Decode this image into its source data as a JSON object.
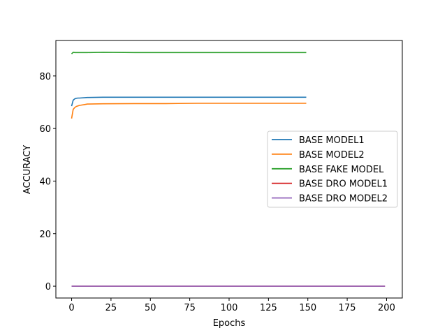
{
  "chart_data": {
    "type": "line",
    "xlabel": "Epochs",
    "ylabel": "ACCURACY",
    "xlim": [
      -10,
      210
    ],
    "ylim": [
      -4.5,
      93.5
    ],
    "xticks": [
      0,
      25,
      50,
      75,
      100,
      125,
      150,
      175,
      200
    ],
    "yticks": [
      0,
      20,
      40,
      60,
      80
    ],
    "grid": false,
    "legend_position": "center-right",
    "series": [
      {
        "name": "BASE MODEL1",
        "color": "#1f77b4",
        "x": [
          0,
          1,
          2,
          3,
          4,
          5,
          10,
          20,
          40,
          60,
          80,
          100,
          120,
          140,
          149
        ],
        "y": [
          68.5,
          70.8,
          71.3,
          71.5,
          71.6,
          71.6,
          71.8,
          71.9,
          71.9,
          71.9,
          71.9,
          71.9,
          71.9,
          71.9,
          71.9
        ]
      },
      {
        "name": "BASE MODEL2",
        "color": "#ff7f0e",
        "x": [
          0,
          1,
          2,
          3,
          5,
          8,
          10,
          20,
          40,
          60,
          80,
          100,
          120,
          140,
          149
        ],
        "y": [
          63.8,
          67.3,
          68.0,
          68.4,
          68.8,
          69.1,
          69.3,
          69.4,
          69.5,
          69.5,
          69.6,
          69.6,
          69.6,
          69.6,
          69.6
        ]
      },
      {
        "name": "BASE FAKE MODEL",
        "color": "#2ca02c",
        "x": [
          0,
          1,
          2,
          5,
          10,
          20,
          40,
          60,
          80,
          100,
          120,
          140,
          149
        ],
        "y": [
          88.4,
          89.0,
          88.9,
          88.9,
          88.9,
          89.0,
          88.9,
          88.9,
          88.9,
          88.9,
          88.9,
          88.9,
          88.9
        ]
      },
      {
        "name": "BASE DRO MODEL1",
        "color": "#d62728",
        "x": [
          0,
          50,
          100,
          150,
          199
        ],
        "y": [
          0.0,
          0.0,
          0.0,
          0.0,
          0.0
        ]
      },
      {
        "name": "BASE DRO MODEL2",
        "color": "#9467bd",
        "x": [
          0,
          50,
          100,
          150,
          199
        ],
        "y": [
          0.0,
          0.0,
          0.0,
          0.0,
          0.0
        ]
      }
    ]
  }
}
